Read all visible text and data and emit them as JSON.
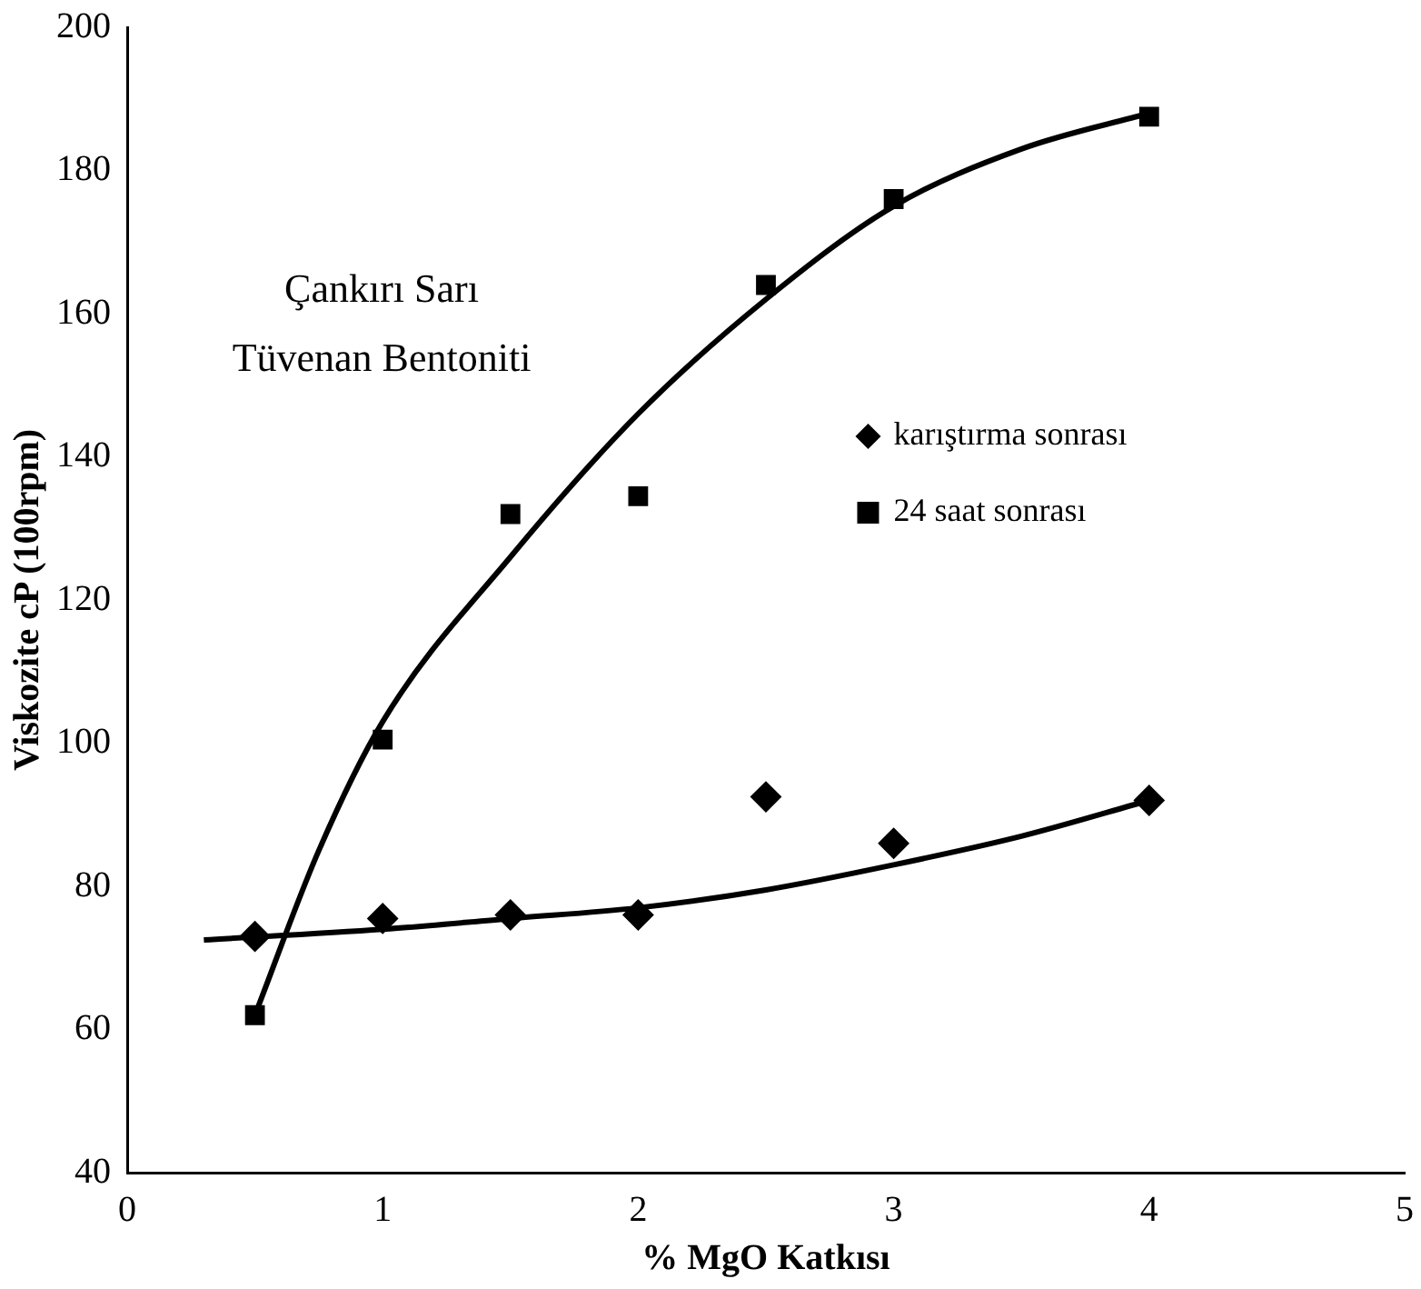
{
  "chart_data": {
    "type": "scatter",
    "xlabel": "% MgO Katkısı",
    "ylabel": "Viskozite cP (100rpm)",
    "annotations": [
      "Çankırı Sarı",
      "Tüvenan Bentoniti"
    ],
    "xlim": [
      0,
      5
    ],
    "xticks": [
      0,
      1,
      2,
      3,
      4,
      5
    ],
    "ylim": [
      40,
      200
    ],
    "yticks": [
      40,
      60,
      80,
      100,
      120,
      140,
      160,
      180,
      200
    ],
    "grid": false,
    "legend": "right",
    "series": [
      {
        "name": "karıştırma sonrası",
        "color": "#000000",
        "marker": "diamond",
        "x": [
          0.5,
          1,
          1.5,
          2,
          2.5,
          3,
          4
        ],
        "values": [
          73,
          75.5,
          76,
          76,
          92.5,
          86,
          92
        ]
      },
      {
        "name": "24 saat sonrası",
        "color": "#000000",
        "marker": "square",
        "x": [
          0.5,
          1,
          1.5,
          2,
          2.5,
          3,
          4
        ],
        "values": [
          62,
          100.5,
          132,
          134.5,
          164,
          176,
          187.5
        ]
      },
      {
        "type": "line",
        "color": "#000000",
        "marker": "none",
        "x": [
          0.3,
          1,
          1.5,
          2,
          2.5,
          3,
          3.5,
          4
        ],
        "values": [
          72.5,
          74,
          75.5,
          77,
          79.5,
          83,
          87,
          92
        ]
      },
      {
        "type": "line",
        "color": "#000000",
        "marker": "none",
        "x": [
          0.5,
          0.75,
          1,
          1.5,
          2,
          2.5,
          3,
          3.5,
          4
        ],
        "values": [
          62,
          85,
          103,
          126,
          146,
          162,
          175,
          183,
          188
        ]
      }
    ]
  }
}
